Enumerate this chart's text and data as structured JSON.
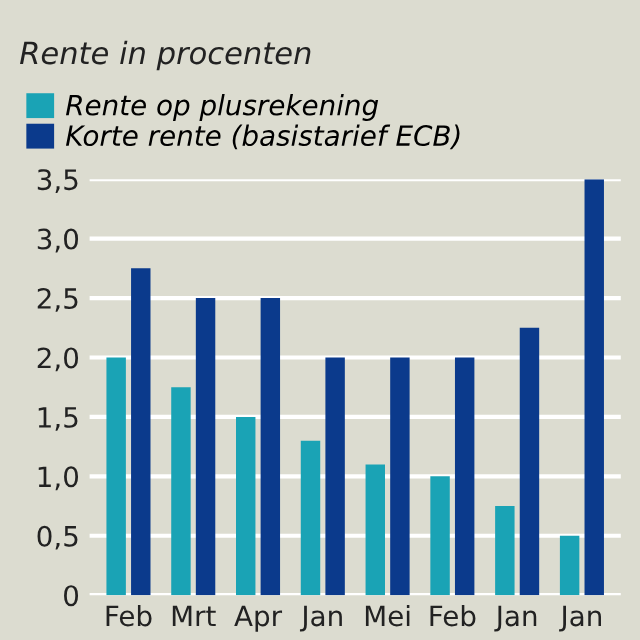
{
  "chart_data": {
    "type": "bar",
    "subtitle": "Rente in procenten",
    "categories": [
      "Feb",
      "Mrt",
      "Apr",
      "Jan",
      "Mei",
      "Feb",
      "Jan",
      "Jan"
    ],
    "series": [
      {
        "name": "Rente op plusrekening",
        "color": "#1aa3b5",
        "values": [
          2.0,
          1.75,
          1.5,
          1.3,
          1.1,
          1.0,
          0.75,
          0.5
        ]
      },
      {
        "name": "Korte rente (basistarief ECB)",
        "color": "#0b3a8c",
        "values": [
          2.75,
          2.5,
          2.5,
          2.0,
          2.0,
          2.0,
          2.25,
          3.5
        ]
      }
    ],
    "ylim": [
      0,
      3.5
    ],
    "yticks": [
      {
        "value": 0,
        "label": "0"
      },
      {
        "value": 0.5,
        "label": "0,5"
      },
      {
        "value": 1,
        "label": "1,0"
      },
      {
        "value": 1.5,
        "label": "1,5"
      },
      {
        "value": 2,
        "label": "2,0"
      },
      {
        "value": 2.5,
        "label": "2,5"
      },
      {
        "value": 3,
        "label": "3,0"
      },
      {
        "value": 3.5,
        "label": "3,5"
      }
    ],
    "grid": "y",
    "legend": "top left"
  }
}
